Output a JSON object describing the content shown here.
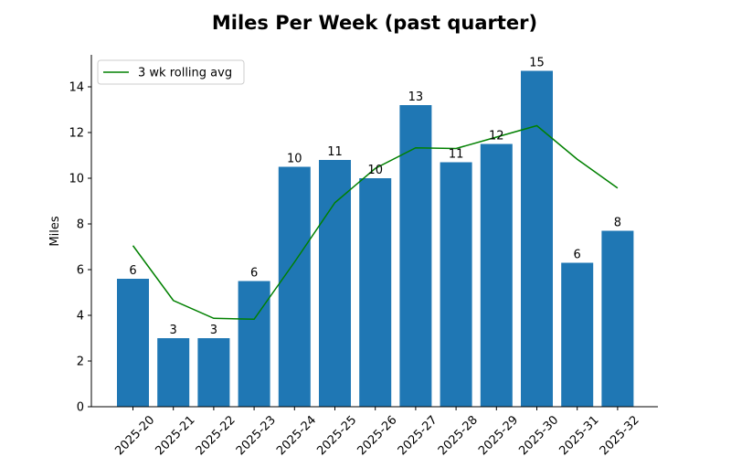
{
  "chart_data": {
    "type": "bar",
    "title": "Miles Per Week (past quarter)",
    "xlabel": "",
    "ylabel": "Miles",
    "ylim": [
      0,
      15.4
    ],
    "yticks": [
      0,
      2,
      4,
      6,
      8,
      10,
      12,
      14
    ],
    "ytick_labels": [
      "0",
      "2",
      "4",
      "6",
      "8",
      "10",
      "12",
      "14"
    ],
    "categories": [
      "2025-20",
      "2025-21",
      "2025-22",
      "2025-23",
      "2025-24",
      "2025-25",
      "2025-26",
      "2025-27",
      "2025-28",
      "2025-29",
      "2025-30",
      "2025-31",
      "2025-32"
    ],
    "series": [
      {
        "type": "bar",
        "color": "#1f77b4",
        "values": [
          5.6,
          3.0,
          3.0,
          5.5,
          10.5,
          10.8,
          10.0,
          13.2,
          10.7,
          11.5,
          14.7,
          6.3,
          7.7
        ],
        "data_labels": [
          "6",
          "3",
          "3",
          "6",
          "10",
          "11",
          "10",
          "13",
          "11",
          "12",
          "15",
          "6",
          "8"
        ]
      },
      {
        "type": "line",
        "name": "3 wk rolling avg",
        "color": "#008000",
        "values": [
          7.05,
          4.65,
          3.87,
          3.83,
          6.33,
          8.93,
          10.43,
          11.33,
          11.3,
          11.8,
          12.3,
          10.83,
          9.57
        ]
      }
    ],
    "legend": {
      "position": "top-left",
      "entries": [
        "3 wk rolling avg"
      ]
    },
    "grid": false
  }
}
